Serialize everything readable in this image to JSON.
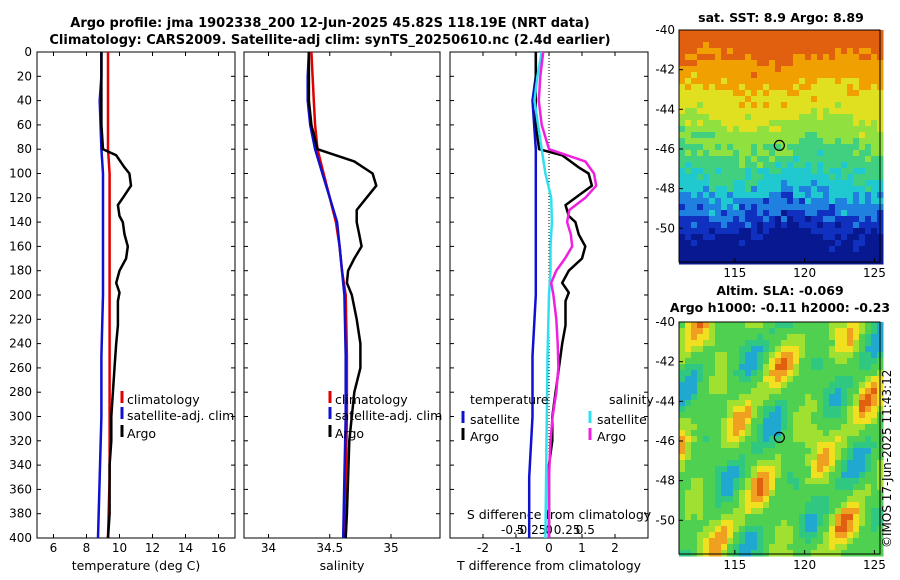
{
  "header": {
    "title_line1": "Argo profile: jma 1902338_200 12-Jun-2025 45.82S 118.19E (NRT data)",
    "title_line2": "Climatology: CARS2009. Satellite-adj clim: synTS_20250610.nc (2.4d earlier)"
  },
  "map_sst": {
    "title": "sat. SST: 8.9 Argo: 8.89",
    "yticks": [
      "-40",
      "-42",
      "-44",
      "-46",
      "-48",
      "-50"
    ],
    "xticks": [
      "115",
      "120",
      "125"
    ]
  },
  "map_sla": {
    "title_line1": "Altim. SLA: -0.069",
    "title_line2": "Argo h1000: -0.11 h2000: -0.23",
    "yticks": [
      "-40",
      "-42",
      "-44",
      "-46",
      "-48",
      "-50"
    ],
    "xticks": [
      "115",
      "120",
      "125"
    ]
  },
  "credit": "©IMOS 17-Jun-2025 11:43:12",
  "colors": {
    "climatology": "#e00000",
    "satellite": "#1010d0",
    "argo": "#000000",
    "sat_salinity": "#30e0f0",
    "argo_salinity": "#f020e0"
  },
  "chart_data": [
    {
      "type": "line",
      "xlabel": "temperature (deg C)",
      "ylabel": "",
      "xlim": [
        5,
        17
      ],
      "ylim": [
        400,
        0
      ],
      "xticks": [
        "6",
        "8",
        "10",
        "12",
        "14",
        "16"
      ],
      "yticks": [
        "0",
        "20",
        "40",
        "60",
        "80",
        "100",
        "120",
        "140",
        "160",
        "180",
        "200",
        "220",
        "240",
        "260",
        "280",
        "300",
        "320",
        "340",
        "360",
        "380",
        "400"
      ],
      "legend": [
        "climatology",
        "satellite-adj. clim",
        "Argo"
      ],
      "series": [
        {
          "name": "climatology",
          "depth": [
            0,
            50,
            80,
            100,
            150,
            200,
            250,
            300,
            350,
            400
          ],
          "values": [
            9.3,
            9.3,
            9.3,
            9.4,
            9.4,
            9.4,
            9.4,
            9.4,
            9.4,
            9.3
          ]
        },
        {
          "name": "satellite-adj. clim",
          "depth": [
            0,
            20,
            40,
            80,
            100,
            150,
            200,
            250,
            300,
            350,
            400
          ],
          "values": [
            8.9,
            8.9,
            8.8,
            8.9,
            9.0,
            9.0,
            9.0,
            8.9,
            8.9,
            8.8,
            8.7
          ]
        },
        {
          "name": "Argo",
          "depth": [
            0,
            40,
            60,
            80,
            85,
            95,
            100,
            110,
            118,
            126,
            135,
            140,
            150,
            160,
            170,
            180,
            190,
            198,
            205,
            215,
            225,
            240,
            260,
            280,
            300,
            320,
            340,
            360,
            380,
            400
          ],
          "values": [
            8.9,
            8.9,
            8.9,
            9.0,
            9.8,
            10.3,
            10.6,
            10.7,
            10.3,
            9.9,
            10.0,
            10.2,
            10.3,
            10.5,
            10.4,
            10.0,
            9.8,
            10.0,
            9.9,
            9.9,
            9.9,
            9.8,
            9.7,
            9.6,
            9.5,
            9.5,
            9.4,
            9.4,
            9.4,
            9.3
          ]
        }
      ]
    },
    {
      "type": "line",
      "xlabel": "salinity",
      "ylabel": "",
      "xlim": [
        33.8,
        35.4
      ],
      "ylim": [
        400,
        0
      ],
      "xticks": [
        "34",
        "34.5",
        "35"
      ],
      "legend": [
        "climatology",
        "satellite-adj. clim",
        "Argo"
      ],
      "series": [
        {
          "name": "climatology",
          "depth": [
            0,
            20,
            40,
            60,
            80,
            100,
            120,
            140,
            160,
            180,
            200,
            250,
            300,
            350,
            400
          ],
          "values": [
            34.35,
            34.36,
            34.37,
            34.38,
            34.4,
            34.45,
            34.5,
            34.55,
            34.58,
            34.6,
            34.63,
            34.64,
            34.64,
            34.63,
            34.62
          ]
        },
        {
          "name": "satellite-adj. clim",
          "depth": [
            0,
            20,
            40,
            60,
            80,
            100,
            120,
            140,
            160,
            180,
            200,
            250,
            300,
            350,
            400
          ],
          "values": [
            34.33,
            34.32,
            34.32,
            34.34,
            34.38,
            34.44,
            34.5,
            34.56,
            34.58,
            34.6,
            34.62,
            34.63,
            34.63,
            34.62,
            34.61
          ]
        },
        {
          "name": "Argo",
          "depth": [
            0,
            20,
            40,
            60,
            80,
            90,
            100,
            110,
            120,
            130,
            140,
            150,
            160,
            170,
            180,
            190,
            200,
            220,
            240,
            260,
            280,
            300,
            320,
            350,
            380,
            400
          ],
          "values": [
            34.33,
            34.33,
            34.33,
            34.35,
            34.4,
            34.7,
            34.85,
            34.88,
            34.8,
            34.72,
            34.72,
            34.74,
            34.76,
            34.7,
            34.65,
            34.64,
            34.68,
            34.72,
            34.75,
            34.75,
            34.7,
            34.68,
            34.66,
            34.65,
            34.64,
            34.63
          ]
        }
      ]
    },
    {
      "type": "line",
      "xlabel": "T difference from climatology",
      "ylabel": "",
      "xlim": [
        -3,
        3
      ],
      "ylim": [
        400,
        0
      ],
      "xticks": [
        "-2",
        "-1",
        "0",
        "1",
        "2"
      ],
      "top_xlabel": "S difference from climatology",
      "top_xticks": [
        "-0.5",
        "-0.25",
        "0",
        "0.25",
        "0.5"
      ],
      "legend_titles": [
        "temperature",
        "salinity"
      ],
      "legend": [
        "satellite",
        "Argo",
        "satellite",
        "Argo"
      ],
      "series": [
        {
          "name": "temperature satellite",
          "depth": [
            0,
            20,
            40,
            80,
            100,
            150,
            200,
            250,
            300,
            350,
            400
          ],
          "values": [
            -0.4,
            -0.4,
            -0.5,
            -0.4,
            -0.4,
            -0.4,
            -0.4,
            -0.5,
            -0.5,
            -0.6,
            -0.6
          ]
        },
        {
          "name": "temperature Argo",
          "depth": [
            0,
            40,
            60,
            80,
            85,
            95,
            100,
            110,
            118,
            126,
            135,
            140,
            150,
            160,
            170,
            180,
            190,
            198,
            205,
            215,
            225,
            240,
            260,
            280,
            300,
            320,
            340,
            360,
            380,
            400
          ],
          "values": [
            -0.4,
            -0.4,
            -0.4,
            -0.3,
            0.4,
            0.9,
            1.2,
            1.3,
            0.9,
            0.5,
            0.6,
            0.8,
            0.9,
            1.1,
            1.0,
            0.6,
            0.4,
            0.6,
            0.5,
            0.5,
            0.5,
            0.4,
            0.3,
            0.2,
            0.1,
            0.1,
            0.0,
            0.0,
            0.0,
            0.0
          ]
        },
        {
          "name": "salinity satellite",
          "depth": [
            0,
            20,
            40,
            60,
            80,
            100,
            120,
            140,
            160,
            180,
            200,
            250,
            300,
            350,
            400
          ],
          "values": [
            -0.1,
            -0.16,
            -0.2,
            -0.15,
            -0.1,
            -0.05,
            0.03,
            0.04,
            0.02,
            0.02,
            0.0,
            -0.02,
            -0.03,
            -0.04,
            -0.05
          ]
        },
        {
          "name": "salinity Argo",
          "depth": [
            0,
            20,
            40,
            60,
            80,
            90,
            100,
            110,
            120,
            130,
            140,
            150,
            160,
            170,
            180,
            190,
            200,
            220,
            240,
            260,
            280,
            300,
            320,
            350,
            380,
            400
          ],
          "values": [
            -0.08,
            -0.12,
            -0.14,
            -0.1,
            0.0,
            0.5,
            0.62,
            0.65,
            0.5,
            0.28,
            0.25,
            0.3,
            0.32,
            0.22,
            0.1,
            0.03,
            0.06,
            0.1,
            0.12,
            0.13,
            0.1,
            0.05,
            0.02,
            0.0,
            0.0,
            0.0
          ]
        }
      ]
    }
  ]
}
